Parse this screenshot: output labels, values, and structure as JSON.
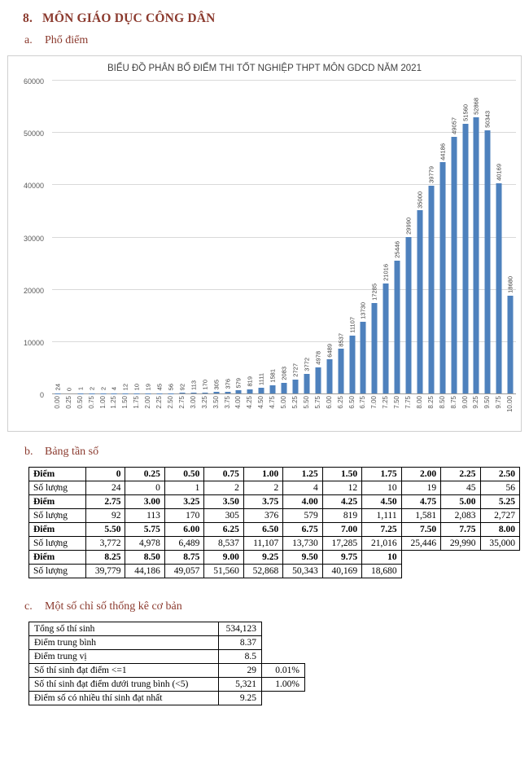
{
  "heading": {
    "number": "8.",
    "text": "MÔN GIÁO DỤC CÔNG DÂN"
  },
  "sections": {
    "a": {
      "label": "a.",
      "title": "Phổ điểm"
    },
    "b": {
      "label": "b.",
      "title": "Bảng tần số"
    },
    "c": {
      "label": "c.",
      "title": "Một số chỉ số thống kê cơ bản"
    }
  },
  "chart_data": {
    "type": "bar",
    "title": "BIỂU ĐỒ PHÂN BỐ ĐIỂM THI TỐT NGHIỆP THPT MÔN GDCD NĂM 2021",
    "categories": [
      "0.00",
      "0.25",
      "0.50",
      "0.75",
      "1.00",
      "1.25",
      "1.50",
      "1.75",
      "2.00",
      "2.25",
      "2.50",
      "2.75",
      "3.00",
      "3.25",
      "3.50",
      "3.75",
      "4.00",
      "4.25",
      "4.50",
      "4.75",
      "5.00",
      "5.25",
      "5.50",
      "5.75",
      "6.00",
      "6.25",
      "6.50",
      "6.75",
      "7.00",
      "7.25",
      "7.50",
      "7.75",
      "8.00",
      "8.25",
      "8.50",
      "8.75",
      "9.00",
      "9.25",
      "9.50",
      "9.75",
      "10.00"
    ],
    "values": [
      24,
      0,
      1,
      2,
      2,
      4,
      12,
      10,
      19,
      45,
      56,
      92,
      113,
      170,
      305,
      376,
      579,
      819,
      1111,
      1581,
      2083,
      2727,
      3772,
      4978,
      6489,
      8537,
      11107,
      13730,
      17285,
      21016,
      25446,
      29990,
      35000,
      39779,
      44186,
      49057,
      51560,
      52868,
      50343,
      40169,
      18680
    ],
    "xlabel": "",
    "ylabel": "",
    "ylim": [
      0,
      60000
    ],
    "yticks": [
      0,
      10000,
      20000,
      30000,
      40000,
      50000,
      60000
    ],
    "grid": true,
    "legend": "none",
    "bar_color": "#4E81BD",
    "value_labels": "rotated-90-above-bars"
  },
  "frequency_table": {
    "rows": [
      {
        "label": "Điểm",
        "bold": true,
        "values": [
          "0",
          "0.25",
          "0.50",
          "0.75",
          "1.00",
          "1.25",
          "1.50",
          "1.75",
          "2.00",
          "2.25",
          "2.50"
        ]
      },
      {
        "label": "Số lượng",
        "bold": false,
        "values": [
          "24",
          "0",
          "1",
          "2",
          "2",
          "4",
          "12",
          "10",
          "19",
          "45",
          "56"
        ]
      },
      {
        "label": "Điểm",
        "bold": true,
        "values": [
          "2.75",
          "3.00",
          "3.25",
          "3.50",
          "3.75",
          "4.00",
          "4.25",
          "4.50",
          "4.75",
          "5.00",
          "5.25"
        ]
      },
      {
        "label": "Số lượng",
        "bold": false,
        "values": [
          "92",
          "113",
          "170",
          "305",
          "376",
          "579",
          "819",
          "1,111",
          "1,581",
          "2,083",
          "2,727"
        ]
      },
      {
        "label": "Điểm",
        "bold": true,
        "values": [
          "5.50",
          "5.75",
          "6.00",
          "6.25",
          "6.50",
          "6.75",
          "7.00",
          "7.25",
          "7.50",
          "7.75",
          "8.00"
        ]
      },
      {
        "label": "Số lượng",
        "bold": false,
        "values": [
          "3,772",
          "4,978",
          "6,489",
          "8,537",
          "11,107",
          "13,730",
          "17,285",
          "21,016",
          "25,446",
          "29,990",
          "35,000"
        ]
      },
      {
        "label": "Điểm",
        "bold": true,
        "values": [
          "8.25",
          "8.50",
          "8.75",
          "9.00",
          "9.25",
          "9.50",
          "9.75",
          "10",
          "",
          "",
          ""
        ]
      },
      {
        "label": "Số lượng",
        "bold": false,
        "values": [
          "39,779",
          "44,186",
          "49,057",
          "51,560",
          "52,868",
          "50,343",
          "40,169",
          "18,680",
          "",
          "",
          ""
        ]
      }
    ]
  },
  "stats_table": {
    "rows": [
      {
        "label": "Tổng số thí sinh",
        "value": "534,123",
        "percent": ""
      },
      {
        "label": "Điểm trung bình",
        "value": "8.37",
        "percent": ""
      },
      {
        "label": "Điểm trung vị",
        "value": "8.5",
        "percent": ""
      },
      {
        "label": "Số thí sinh đạt điểm <=1",
        "value": "29",
        "percent": "0.01%"
      },
      {
        "label": "Số thí sinh đạt điểm dưới trung bình (<5)",
        "value": "5,321",
        "percent": "1.00%"
      },
      {
        "label": "Điểm số có nhiều thí sinh đạt nhất",
        "value": "9.25",
        "percent": ""
      }
    ]
  }
}
